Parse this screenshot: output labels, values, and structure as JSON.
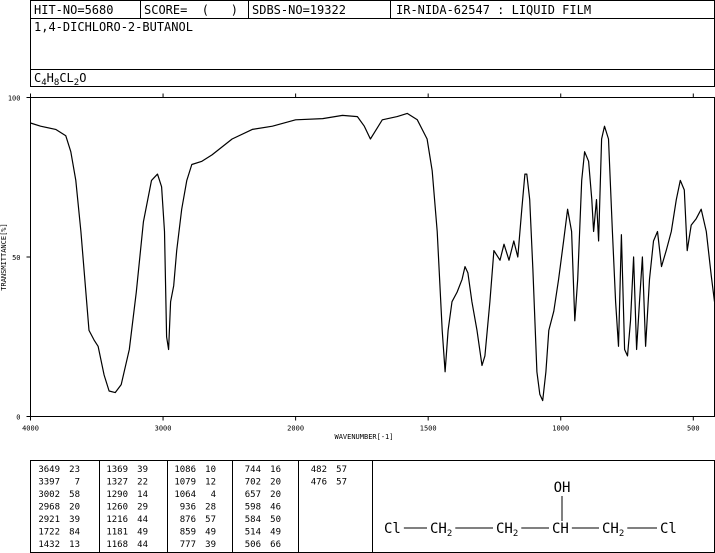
{
  "header": {
    "hit_no": "HIT-NO=5680",
    "score": "SCORE=  (   )",
    "sdbs_no": "SDBS-NO=19322",
    "method": "IR-NIDA-62547 : LIQUID FILM"
  },
  "compound": {
    "name": "1,4-DICHLORO-2-BUTANOL",
    "formula": [
      "C",
      "4",
      "H",
      "8",
      "CL",
      "2",
      "O"
    ]
  },
  "chart_data": {
    "type": "line",
    "xlabel": "WAVENUMBER[-1]",
    "ylabel": "TRANSMITTANCE[%]",
    "xlim": [
      4000,
      420
    ],
    "x_scale_break": 2000,
    "x_scale_factor_below_break": 2,
    "xticks": [
      4000,
      3000,
      2000,
      1500,
      1000,
      500
    ],
    "ylim": [
      0,
      100
    ],
    "yticks": [
      0,
      50,
      100
    ],
    "color": "#000000",
    "x": [
      4000,
      3924,
      3810,
      3734,
      3696,
      3658,
      3620,
      3559,
      3521,
      3490,
      3445,
      3407,
      3361,
      3316,
      3255,
      3202,
      3148,
      3087,
      3042,
      3011,
      2989,
      2973,
      2958,
      2943,
      2920,
      2897,
      2859,
      2821,
      2783,
      2707,
      2631,
      2479,
      2327,
      2175,
      2000,
      1898,
      1823,
      1767,
      1741,
      1718,
      1703,
      1673,
      1617,
      1579,
      1541,
      1504,
      1485,
      1466,
      1447,
      1436,
      1425,
      1410,
      1391,
      1372,
      1361,
      1350,
      1335,
      1316,
      1297,
      1286,
      1267,
      1252,
      1229,
      1214,
      1195,
      1177,
      1162,
      1147,
      1135,
      1128,
      1117,
      1105,
      1090,
      1079,
      1068,
      1056,
      1045,
      1026,
      1008,
      989,
      974,
      959,
      947,
      936,
      921,
      910,
      895,
      883,
      876,
      865,
      857,
      846,
      835,
      820,
      805,
      793,
      782,
      771,
      759,
      748,
      737,
      725,
      714,
      703,
      692,
      680,
      665,
      650,
      635,
      620,
      602,
      583,
      564,
      549,
      534,
      523,
      508,
      489,
      470,
      451,
      432,
      420
    ],
    "values": [
      92,
      91,
      90,
      88,
      83,
      74,
      58,
      27,
      24,
      22,
      13,
      8,
      7.5,
      10,
      21,
      39,
      61,
      74,
      76,
      72,
      58,
      25,
      21,
      36,
      41,
      52,
      65,
      74,
      79,
      80,
      82,
      87,
      90,
      91,
      93,
      93.4,
      94.4,
      94,
      91,
      87,
      89,
      93,
      94,
      95,
      93,
      87,
      77,
      58,
      27,
      14,
      27,
      36,
      39,
      43,
      47,
      45,
      36,
      27,
      16,
      19,
      36,
      52,
      49,
      54,
      49,
      55,
      50,
      65,
      76,
      76,
      68,
      46,
      14,
      7,
      5,
      14,
      27,
      33,
      43,
      55,
      65,
      58,
      30,
      43,
      74,
      83,
      80,
      68,
      58,
      68,
      55,
      87,
      91,
      87,
      58,
      36,
      22,
      57,
      21,
      19,
      30,
      50,
      21,
      36,
      50,
      22,
      43,
      55,
      58,
      47,
      52,
      58,
      68,
      74,
      71,
      52,
      60,
      62,
      65,
      58,
      44,
      36
    ]
  },
  "peaks": [
    [
      [
        "3649",
        "23"
      ],
      [
        "3397",
        "7"
      ],
      [
        "3002",
        "58"
      ],
      [
        "2968",
        "20"
      ],
      [
        "2921",
        "39"
      ],
      [
        "1722",
        "84"
      ],
      [
        "1432",
        "13"
      ]
    ],
    [
      [
        "1369",
        "39"
      ],
      [
        "1327",
        "22"
      ],
      [
        "1290",
        "14"
      ],
      [
        "1260",
        "29"
      ],
      [
        "1216",
        "44"
      ],
      [
        "1181",
        "49"
      ],
      [
        "1168",
        "44"
      ]
    ],
    [
      [
        "1086",
        "10"
      ],
      [
        "1079",
        "12"
      ],
      [
        "1064",
        "4"
      ],
      [
        "936",
        "28"
      ],
      [
        "876",
        "57"
      ],
      [
        "859",
        "49"
      ],
      [
        "777",
        "39"
      ]
    ],
    [
      [
        "744",
        "16"
      ],
      [
        "702",
        "20"
      ],
      [
        "657",
        "20"
      ],
      [
        "598",
        "46"
      ],
      [
        "584",
        "50"
      ],
      [
        "514",
        "49"
      ],
      [
        "506",
        "66"
      ]
    ],
    [
      [
        "482",
        "57"
      ],
      [
        "476",
        "57"
      ]
    ]
  ],
  "structure": {
    "substituent": "OH",
    "chain": [
      [
        "Cl"
      ],
      [
        "CH",
        "2"
      ],
      [
        "CH",
        "2"
      ],
      [
        "CH"
      ],
      [
        "CH",
        "2"
      ],
      [
        "Cl"
      ]
    ]
  }
}
